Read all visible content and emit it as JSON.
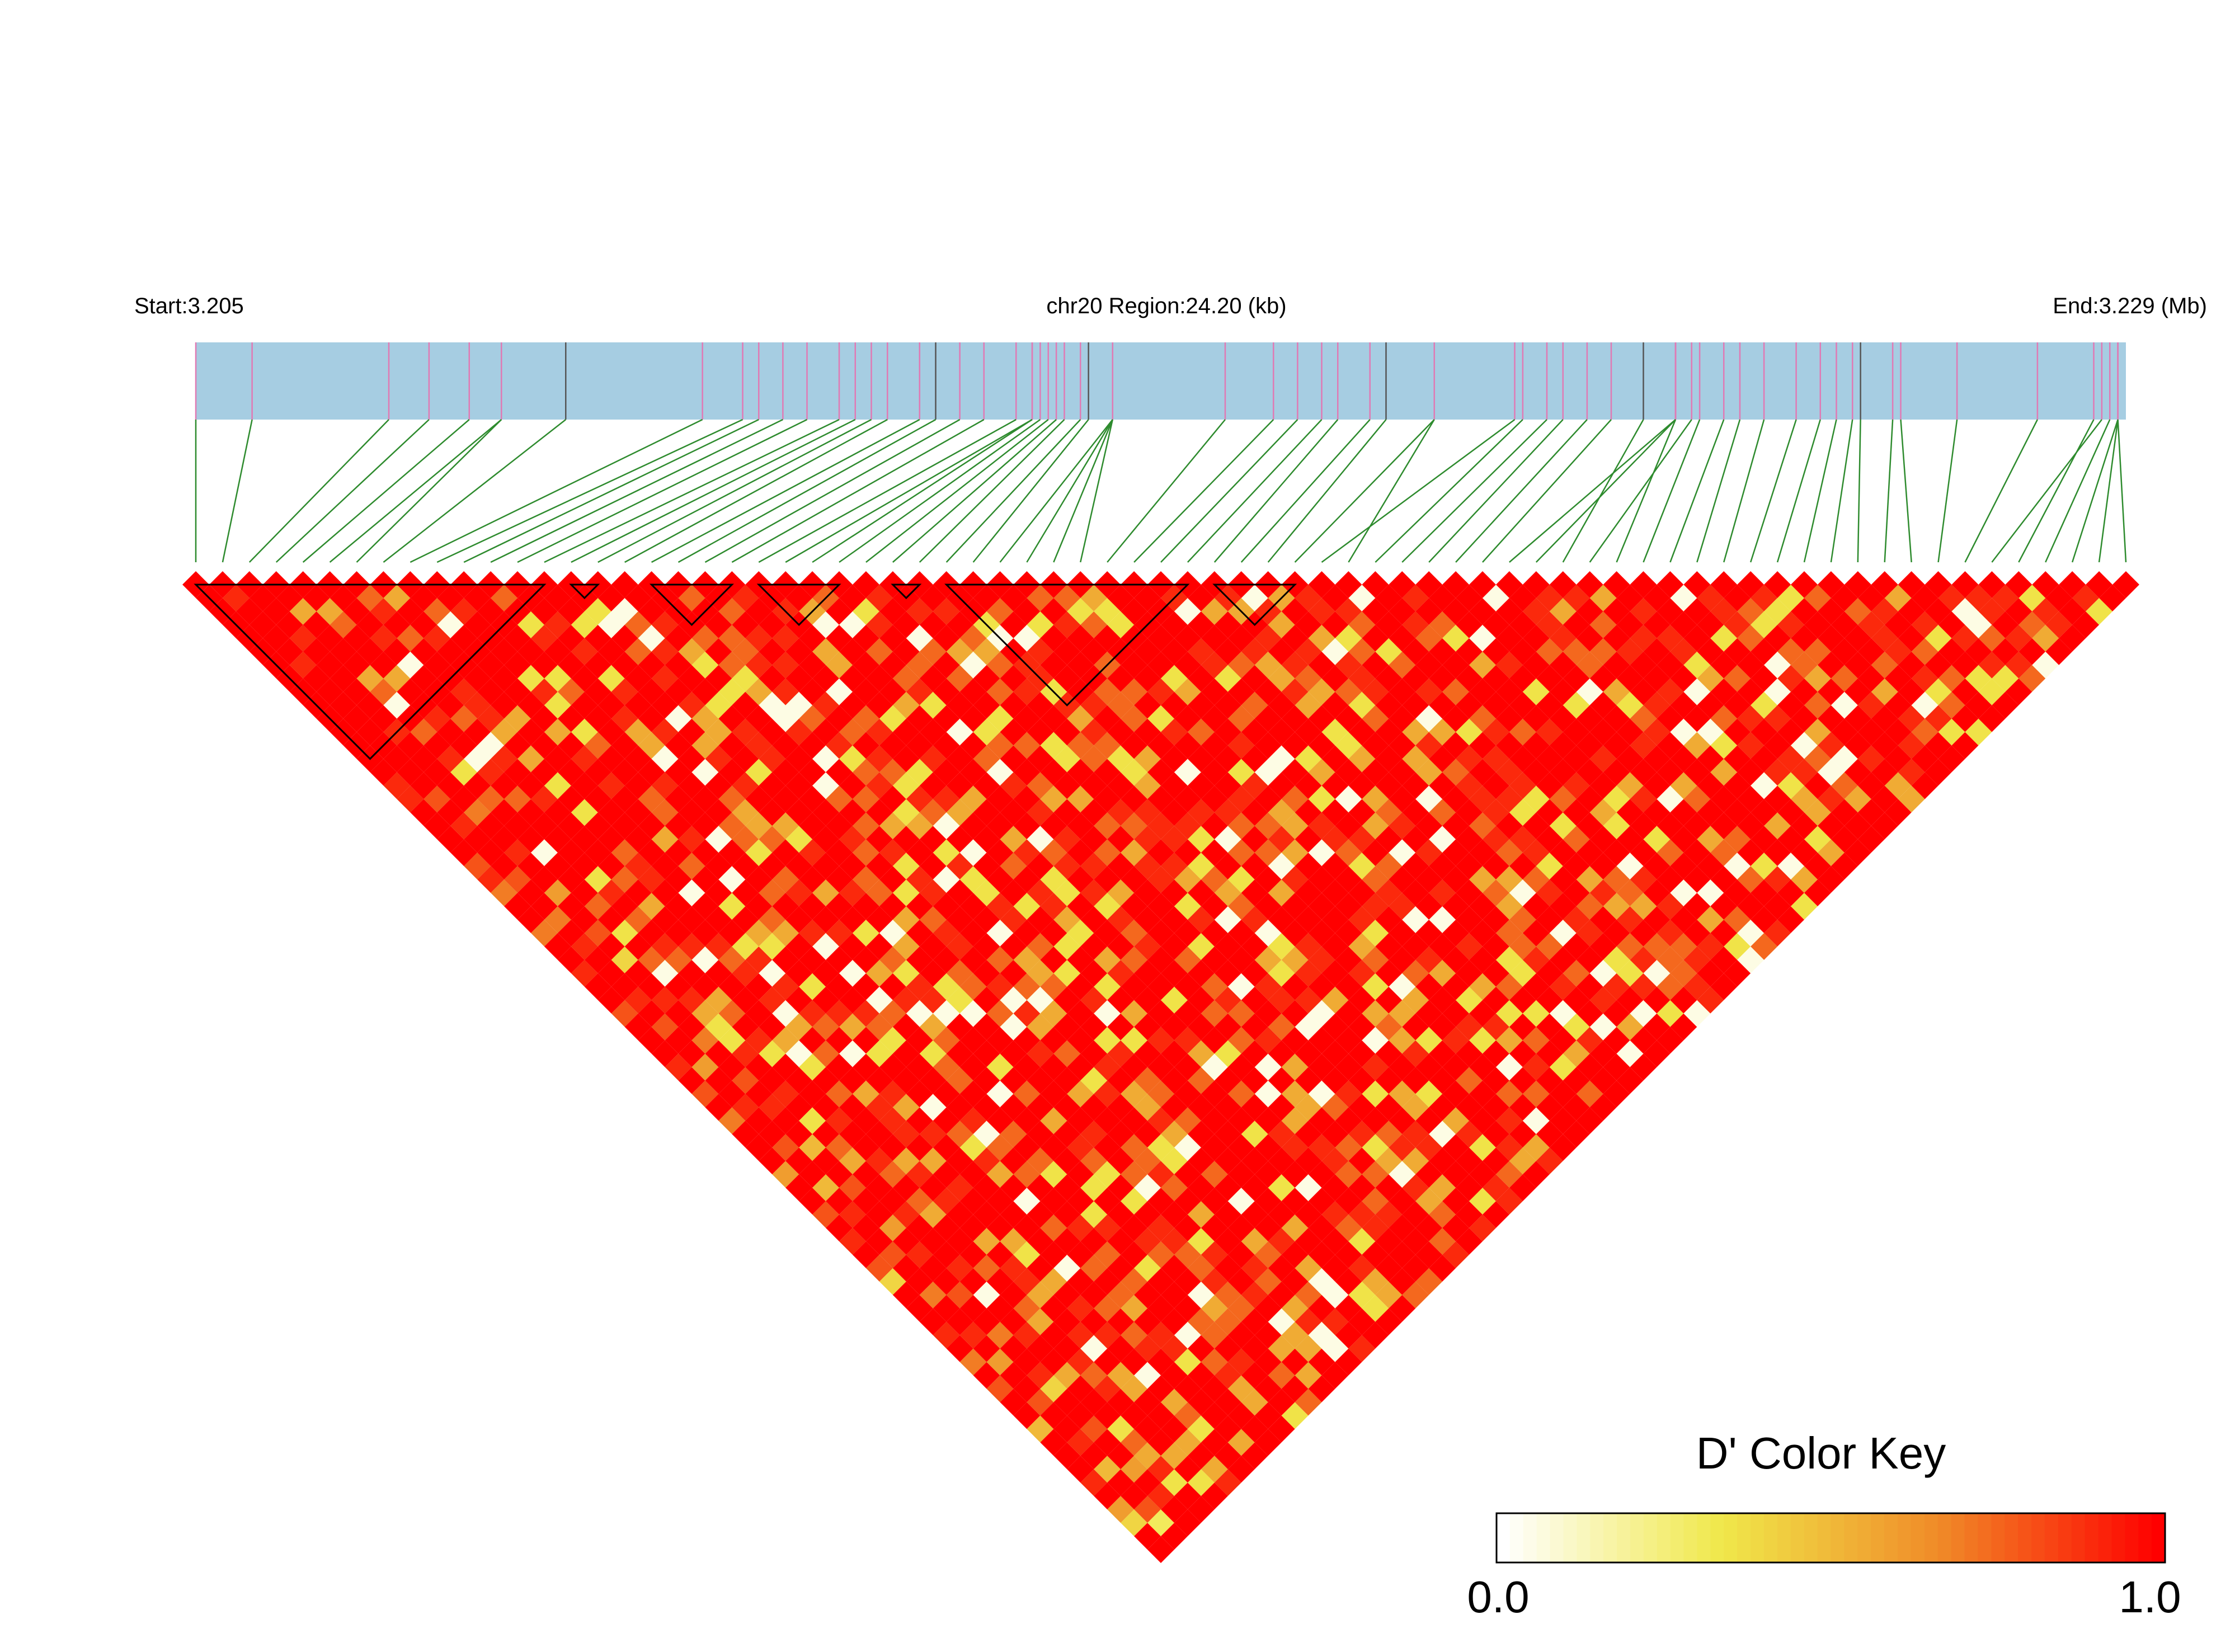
{
  "chart_data": {
    "type": "heatmap",
    "subtype": "ld-triangle",
    "header": {
      "start_label": "Start:3.205",
      "region_label": "chr20 Region:24.20 (kb)",
      "end_label": "End:3.229 (Mb)"
    },
    "region": {
      "chromosome": "chr20",
      "start_mb": 3.205,
      "end_mb": 3.229,
      "length_kb": 24.2
    },
    "snp_positions_mb": [
      3.205,
      3.2057,
      3.2074,
      3.2079,
      3.2084,
      3.2088,
      3.2088,
      3.2096,
      3.2113,
      3.2118,
      3.212,
      3.2123,
      3.2126,
      3.213,
      3.2132,
      3.2134,
      3.2136,
      3.214,
      3.2142,
      3.2145,
      3.2148,
      3.2152,
      3.2154,
      3.2154,
      3.2155,
      3.2156,
      3.2157,
      3.2158,
      3.216,
      3.2161,
      3.2164,
      3.2164,
      3.2164,
      3.2164,
      3.2178,
      3.2184,
      3.2187,
      3.219,
      3.2192,
      3.2196,
      3.2198,
      3.2204,
      3.2214,
      3.2204,
      3.2215,
      3.2218,
      3.222,
      3.2223,
      3.2226,
      3.2234,
      3.2234,
      3.223,
      3.2236,
      3.2234,
      3.2237,
      3.224,
      3.2242,
      3.2245,
      3.2249,
      3.2252,
      3.2254,
      3.2256,
      3.2257,
      3.2261,
      3.2262,
      3.2269,
      3.2279,
      3.2287,
      3.2286,
      3.2288,
      3.2289,
      3.2289,
      3.2289
    ],
    "haplotype_blocks": [
      [
        1,
        14
      ],
      [
        15,
        16
      ],
      [
        17,
        17
      ],
      [
        18,
        21
      ],
      [
        22,
        25
      ],
      [
        26,
        26
      ],
      [
        27,
        28
      ],
      [
        29,
        38
      ],
      [
        39,
        42
      ]
    ],
    "haplotype_blocks_note": "1-based marker ranges",
    "color_key": {
      "title": "D' Color Key",
      "min_label": "0.0",
      "max_label": "1.0",
      "min": 0.0,
      "max": 1.0,
      "stops": [
        "#ffffff",
        "#f0e84a",
        "#f08a28",
        "#ff0000"
      ]
    },
    "colors": {
      "gene_bar": "#a6cde2",
      "tick_pink": "#e07ab4",
      "tick_dark": "#555555",
      "connector": "#2e8b2e",
      "block_outline": "#000000",
      "strong_ld": "#ff0000"
    },
    "markers_count": 73,
    "d_prime_matrix_encoding": "rows of the lower triangle (pairs i<j), row i lists D' for j=i+1..N, values 0-1",
    "d_prime_rows": [
      [
        1.0,
        1.0,
        1.0,
        1.0,
        1.0,
        1.0,
        1.0,
        1.0,
        1.0,
        1.0,
        1.0,
        1.0,
        1.0,
        1.0,
        0.9,
        0.9,
        1.0,
        1.0,
        1.0,
        1.0,
        0.8,
        0.9,
        0.7,
        1.0,
        1.0,
        0.7,
        1.0,
        1.0,
        0.9,
        1.0,
        1.0,
        0.8,
        1.0,
        1.0,
        1.0,
        0.9,
        1.0,
        0.8,
        1.0,
        0.7,
        1.0,
        1.0,
        1.0,
        0.6,
        1.0,
        1.0,
        0.8,
        1.0,
        0.9,
        1.0,
        0.8,
        0.4,
        1.0,
        1.0,
        1.0,
        0.9,
        1.0,
        0.7,
        1.0,
        0.8,
        1.0,
        1.0,
        0.5,
        1.0,
        1.0,
        1.0,
        0.9,
        1.0,
        0.6,
        0.4,
        1.0,
        1.0
      ],
      [
        0.9,
        1.0,
        1.0,
        1.0,
        1.0,
        0.9,
        1.0,
        1.0,
        1.0,
        1.0,
        1.0,
        1.0,
        1.0,
        1.0,
        1.0,
        0.8,
        1.0,
        0.9,
        1.0,
        1.0,
        1.0,
        0.8,
        1.0,
        1.0,
        0.7,
        1.0,
        0.9,
        1.0,
        1.0,
        1.0,
        0.9,
        1.0,
        0.8,
        1.0,
        1.0,
        0.6,
        1.0,
        1.0,
        0.9,
        1.0,
        1.0,
        0.8,
        1.0,
        1.0,
        0.5,
        1.0,
        0.9,
        1.0,
        1.0,
        0.8,
        1.0,
        1.0,
        0.7,
        1.0,
        1.0,
        0.9,
        1.0,
        0.6,
        1.0,
        1.0,
        0.8,
        1.0,
        1.0,
        0.9,
        1.0,
        0.5,
        1.0,
        1.0,
        0.8,
        0.3,
        1.0
      ],
      [
        1.0,
        1.0,
        1.0,
        0.9,
        1.0,
        1.0,
        1.0,
        1.0,
        1.0,
        1.0,
        0.9,
        1.0,
        1.0,
        1.0,
        1.0,
        1.0,
        0.7,
        1.0,
        1.0,
        0.9,
        1.0,
        1.0,
        0.6,
        1.0,
        1.0,
        0.8,
        1.0,
        0.4,
        1.0,
        1.0,
        0.9,
        1.0,
        1.0,
        0.7,
        1.0,
        1.0,
        0.8,
        1.0,
        0.9,
        1.0,
        1.0,
        0.5,
        1.0,
        1.0,
        0.8,
        1.0,
        1.0,
        0.6,
        1.0,
        0.9,
        1.0,
        1.0,
        0.8,
        1.0,
        1.0,
        0.7,
        1.0,
        1.0,
        0.9,
        0.4,
        1.0,
        1.0,
        0.8,
        1.0,
        1.0,
        0.6,
        1.0,
        0.9,
        1.0,
        1.0
      ]
    ]
  }
}
